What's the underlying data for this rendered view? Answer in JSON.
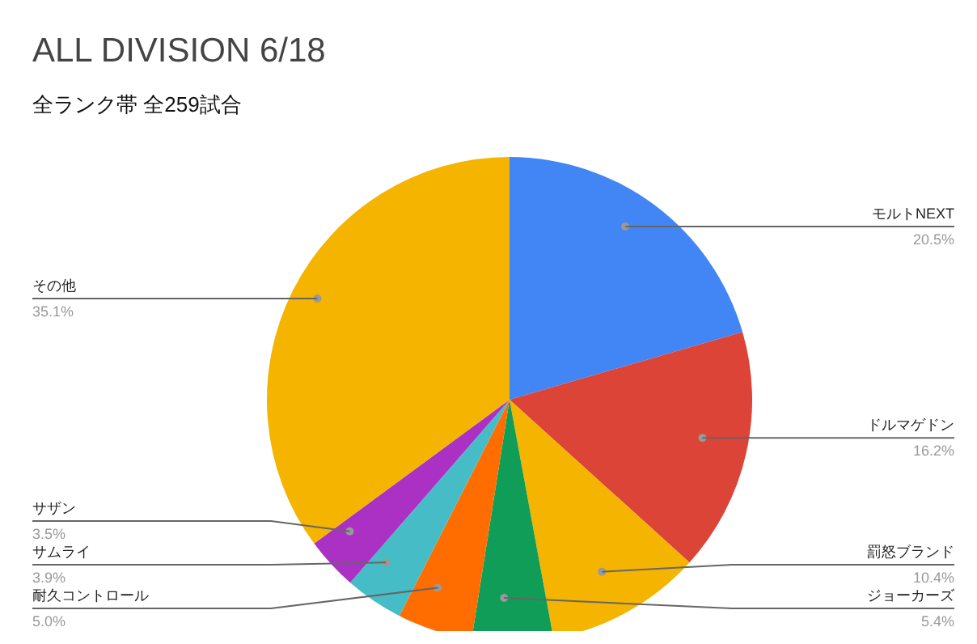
{
  "chart_data": {
    "type": "pie",
    "title": "ALL DIVISION 6/18",
    "subtitle": "全ランク帯 全259試合",
    "categories": [
      "モルトNEXT",
      "ドルマゲドン",
      "罰怒ブランド",
      "ジョーカーズ",
      "耐久コントロール",
      "サムライ",
      "サザン",
      "その他"
    ],
    "values": [
      20.5,
      16.2,
      10.4,
      5.4,
      5.0,
      3.9,
      3.5,
      35.1
    ],
    "colors": [
      "#4285f4",
      "#db4437",
      "#f4b400",
      "#0f9d58",
      "#ff6d01",
      "#46bdc6",
      "#ab30c4",
      "#f4b400"
    ],
    "value_labels": [
      "20.5%",
      "16.2%",
      "10.4%",
      "5.4%",
      "5.0%",
      "3.9%",
      "3.5%",
      "35.1%"
    ],
    "legend": false
  }
}
